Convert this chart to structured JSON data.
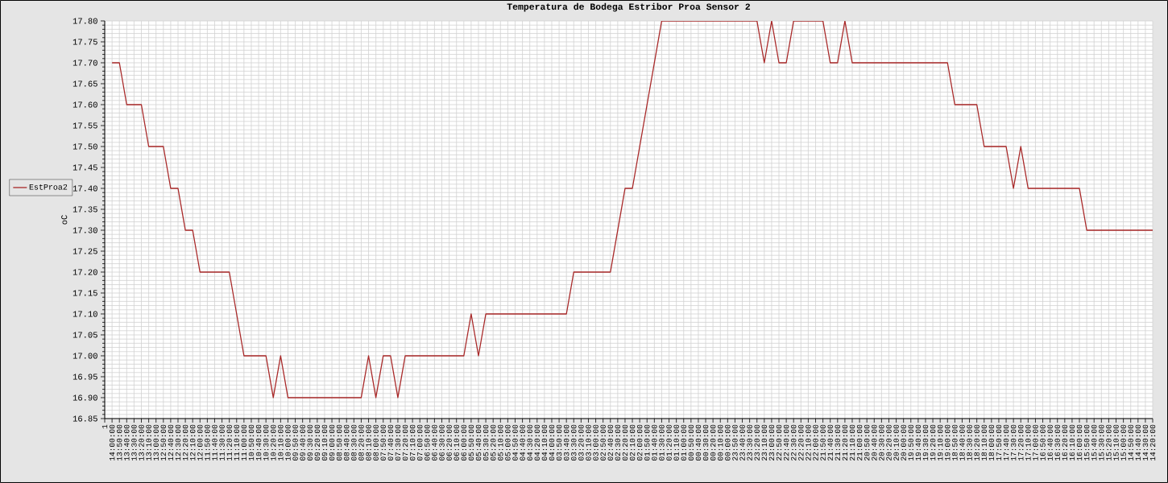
{
  "chart_data": {
    "type": "line",
    "title": "Temperatura de Bodega Estribor Proa Sensor 2",
    "ylabel": "oC",
    "categories": [
      "1",
      "14:00:00",
      "13:50:00",
      "13:40:00",
      "13:30:00",
      "13:20:00",
      "13:10:00",
      "13:00:00",
      "12:50:00",
      "12:40:00",
      "12:30:00",
      "12:20:00",
      "12:10:00",
      "12:00:00",
      "11:50:00",
      "11:40:00",
      "11:30:00",
      "11:20:00",
      "11:10:00",
      "11:00:00",
      "10:50:00",
      "10:40:00",
      "10:30:00",
      "10:20:00",
      "10:10:00",
      "10:00:00",
      "09:50:00",
      "09:40:00",
      "09:30:00",
      "09:20:00",
      "09:10:00",
      "09:00:00",
      "08:50:00",
      "08:40:00",
      "08:30:00",
      "08:20:00",
      "08:10:00",
      "08:00:00",
      "07:50:00",
      "07:40:00",
      "07:30:00",
      "07:20:00",
      "07:10:00",
      "07:00:00",
      "06:50:00",
      "06:40:00",
      "06:30:00",
      "06:20:00",
      "06:10:00",
      "06:00:00",
      "05:50:00",
      "05:40:00",
      "05:30:00",
      "05:20:00",
      "05:10:00",
      "05:00:00",
      "04:50:00",
      "04:40:00",
      "04:30:00",
      "04:20:00",
      "04:10:00",
      "04:00:00",
      "03:50:00",
      "03:40:00",
      "03:30:00",
      "03:20:00",
      "03:10:00",
      "03:00:00",
      "02:50:00",
      "02:40:00",
      "02:30:00",
      "02:20:00",
      "02:10:00",
      "02:00:00",
      "01:50:00",
      "01:40:00",
      "01:30:00",
      "01:20:00",
      "01:10:00",
      "01:00:00",
      "00:50:00",
      "00:40:00",
      "00:30:00",
      "00:20:00",
      "00:10:00",
      "00:00:00",
      "23:50:00",
      "23:40:00",
      "23:30:00",
      "23:20:00",
      "23:10:00",
      "23:00:00",
      "22:50:00",
      "22:40:00",
      "22:30:00",
      "22:20:00",
      "22:10:00",
      "22:00:00",
      "21:50:00",
      "21:40:00",
      "21:30:00",
      "21:20:00",
      "21:10:00",
      "21:00:00",
      "20:50:00",
      "20:40:00",
      "20:30:00",
      "20:20:00",
      "20:10:00",
      "20:00:00",
      "19:50:00",
      "19:40:00",
      "19:30:00",
      "19:20:00",
      "19:10:00",
      "19:00:00",
      "18:50:00",
      "18:40:00",
      "18:30:00",
      "18:20:00",
      "18:10:00",
      "18:00:00",
      "17:50:00",
      "17:40:00",
      "17:30:00",
      "17:20:00",
      "17:10:00",
      "17:00:00",
      "16:50:00",
      "16:40:00",
      "16:30:00",
      "16:20:00",
      "16:10:00",
      "16:00:00",
      "15:50:00",
      "15:40:00",
      "15:30:00",
      "15:20:00",
      "15:10:00",
      "15:00:00",
      "14:50:00",
      "14:40:00",
      "14:30:00",
      "14:20:00"
    ],
    "series": [
      {
        "name": "EstProa2",
        "color": "#a82828",
        "values": [
          null,
          17.7,
          17.7,
          17.6,
          17.6,
          17.6,
          17.5,
          17.5,
          17.5,
          17.4,
          17.4,
          17.3,
          17.3,
          17.2,
          17.2,
          17.2,
          17.2,
          17.2,
          17.1,
          17.0,
          17.0,
          17.0,
          17.0,
          16.9,
          17.0,
          16.9,
          16.9,
          16.9,
          16.9,
          16.9,
          16.9,
          16.9,
          16.9,
          16.9,
          16.9,
          16.9,
          17.0,
          16.9,
          17.0,
          17.0,
          16.9,
          17.0,
          17.0,
          17.0,
          17.0,
          17.0,
          17.0,
          17.0,
          17.0,
          17.0,
          17.1,
          17.0,
          17.1,
          17.1,
          17.1,
          17.1,
          17.1,
          17.1,
          17.1,
          17.1,
          17.1,
          17.1,
          17.1,
          17.1,
          17.2,
          17.2,
          17.2,
          17.2,
          17.2,
          17.2,
          17.3,
          17.4,
          17.4,
          17.5,
          17.6,
          17.7,
          17.8,
          17.8,
          17.8,
          17.8,
          17.8,
          17.8,
          17.8,
          17.8,
          17.8,
          17.8,
          17.8,
          17.8,
          17.8,
          17.8,
          17.7,
          17.8,
          17.7,
          17.7,
          17.8,
          17.8,
          17.8,
          17.8,
          17.8,
          17.7,
          17.7,
          17.8,
          17.7,
          17.7,
          17.7,
          17.7,
          17.7,
          17.7,
          17.7,
          17.7,
          17.7,
          17.7,
          17.7,
          17.7,
          17.7,
          17.7,
          17.6,
          17.6,
          17.6,
          17.6,
          17.5,
          17.5,
          17.5,
          17.5,
          17.4,
          17.5,
          17.4,
          17.4,
          17.4,
          17.4,
          17.4,
          17.4,
          17.4,
          17.4,
          17.3,
          17.3,
          17.3,
          17.3,
          17.3,
          17.3,
          17.3,
          17.3,
          17.3,
          17.3
        ]
      }
    ],
    "ylim": [
      16.85,
      17.8
    ],
    "yticks": [
      {
        "value": 16.85,
        "label": "16.85"
      },
      {
        "value": 16.9,
        "label": "16.90"
      },
      {
        "value": 16.95,
        "label": "16.95"
      },
      {
        "value": 17.0,
        "label": "17.00"
      },
      {
        "value": 17.05,
        "label": "17.05"
      },
      {
        "value": 17.1,
        "label": "17.10"
      },
      {
        "value": 17.15,
        "label": "17.15"
      },
      {
        "value": 17.2,
        "label": "17.20"
      },
      {
        "value": 17.25,
        "label": "17.25"
      },
      {
        "value": 17.3,
        "label": "17.30"
      },
      {
        "value": 17.35,
        "label": "17.35"
      },
      {
        "value": 17.4,
        "label": "17.40"
      },
      {
        "value": 17.45,
        "label": "17.45"
      },
      {
        "value": 17.5,
        "label": "17.50"
      },
      {
        "value": 17.55,
        "label": "17.55"
      },
      {
        "value": 17.6,
        "label": "17.60"
      },
      {
        "value": 17.65,
        "label": "17.65"
      },
      {
        "value": 17.7,
        "label": "17.70"
      },
      {
        "value": 17.75,
        "label": "17.75"
      },
      {
        "value": 17.8,
        "label": "17.80"
      }
    ],
    "grid": true,
    "legend": "left"
  }
}
